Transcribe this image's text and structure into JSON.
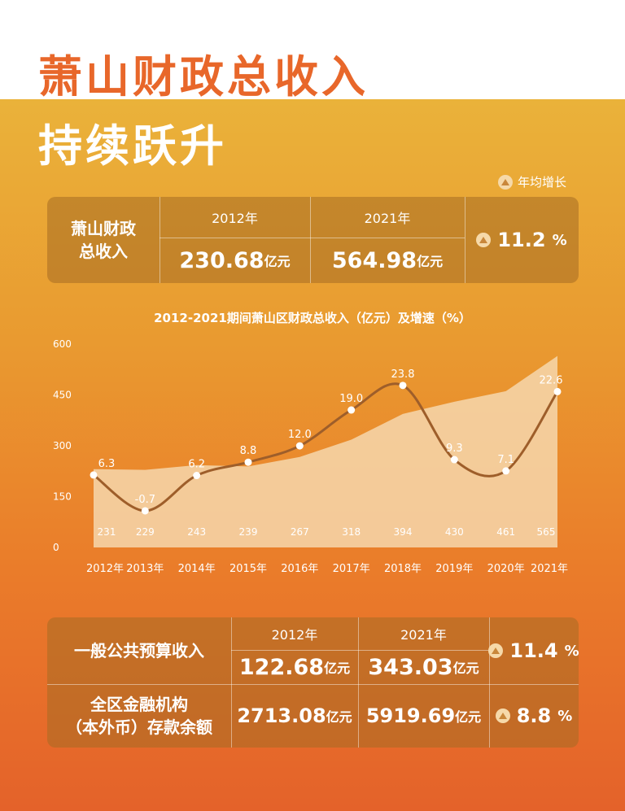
{
  "title_line1": "萧山财政总收入",
  "title_line2": "持续跃升",
  "legend_label": "年均增长",
  "summary1": {
    "label_line1": "萧山财政",
    "label_line2": "总收入",
    "year_a": "2012年",
    "year_b": "2021年",
    "value_a": "230.68",
    "value_b": "564.98",
    "unit": "亿元",
    "growth": "11.2",
    "pct": "%"
  },
  "chart_title": "2012-2021期间萧山区财政总收入（亿元）及增速（%）",
  "chart_data": {
    "type": "area",
    "categories": [
      "2012年",
      "2013年",
      "2014年",
      "2015年",
      "2016年",
      "2017年",
      "2018年",
      "2019年",
      "2020年",
      "2021年"
    ],
    "y_ticks": [
      "600",
      "450",
      "300",
      "150",
      "0"
    ],
    "ylim": [
      0,
      600
    ],
    "series": [
      {
        "values": [
          231,
          229,
          243,
          239,
          267,
          318,
          394,
          430,
          461,
          565
        ],
        "type": "area",
        "value_labels": [
          "231",
          "229",
          "243",
          "239",
          "267",
          "318",
          "394",
          "430",
          "461",
          "565"
        ]
      },
      {
        "values": [
          6.3,
          -0.7,
          6.2,
          8.8,
          12.0,
          19.0,
          23.8,
          9.3,
          7.1,
          22.6
        ],
        "type": "line",
        "value_labels": [
          "6.3",
          "-0.7",
          "6.2",
          "8.8",
          "12.0",
          "19.0",
          "23.8",
          "9.3",
          "7.1",
          "22.6"
        ]
      }
    ]
  },
  "summary2": {
    "year_a": "2012年",
    "year_b": "2021年",
    "unit": "亿元",
    "pct": "%",
    "row1": {
      "label": "一般公共预算收入",
      "value_a": "122.68",
      "value_b": "343.03",
      "growth": "11.4"
    },
    "row2": {
      "label_line1": "全区金融机构",
      "label_line2": "（本外币）存款余额",
      "value_a": "2713.08",
      "value_b": "5919.69",
      "growth": "8.8"
    }
  },
  "colors": {
    "title": "#e8672a",
    "area": "#f6d7ad",
    "line": "#9e5e2a",
    "box": "#a66c22"
  },
  "icons": {
    "growth": "triangle-up-icon"
  }
}
